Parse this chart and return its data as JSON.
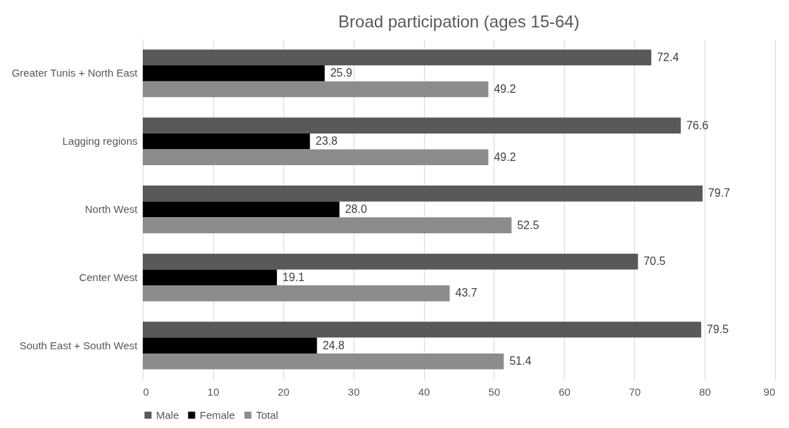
{
  "chart_data": {
    "type": "bar",
    "orientation": "horizontal",
    "title": "Broad participation (ages 15-64)",
    "categories": [
      "Greater Tunis + North East",
      "Lagging regions",
      "North West",
      "Center West",
      "South East + South West"
    ],
    "series": [
      {
        "name": "Male",
        "color": "#595959",
        "values": [
          72.4,
          76.6,
          79.7,
          70.5,
          79.5
        ],
        "value_labels": [
          "72.4",
          "76.6",
          "79.7",
          "70.5",
          "79.5"
        ]
      },
      {
        "name": "Female",
        "color": "#000000",
        "values": [
          25.9,
          23.8,
          28.0,
          19.1,
          24.8
        ],
        "value_labels": [
          "25.9",
          "23.8",
          "28.0",
          "19.1",
          "24.8"
        ]
      },
      {
        "name": "Total",
        "color": "#8c8c8c",
        "values": [
          49.2,
          49.2,
          52.5,
          43.7,
          51.4
        ],
        "value_labels": [
          "49.2",
          "49.2",
          "52.5",
          "43.7",
          "51.4"
        ]
      }
    ],
    "xlim": [
      0,
      90
    ],
    "xticks": [
      0,
      10,
      20,
      30,
      40,
      50,
      60,
      70,
      80,
      90
    ],
    "grid": "x",
    "legend": "bottom"
  }
}
